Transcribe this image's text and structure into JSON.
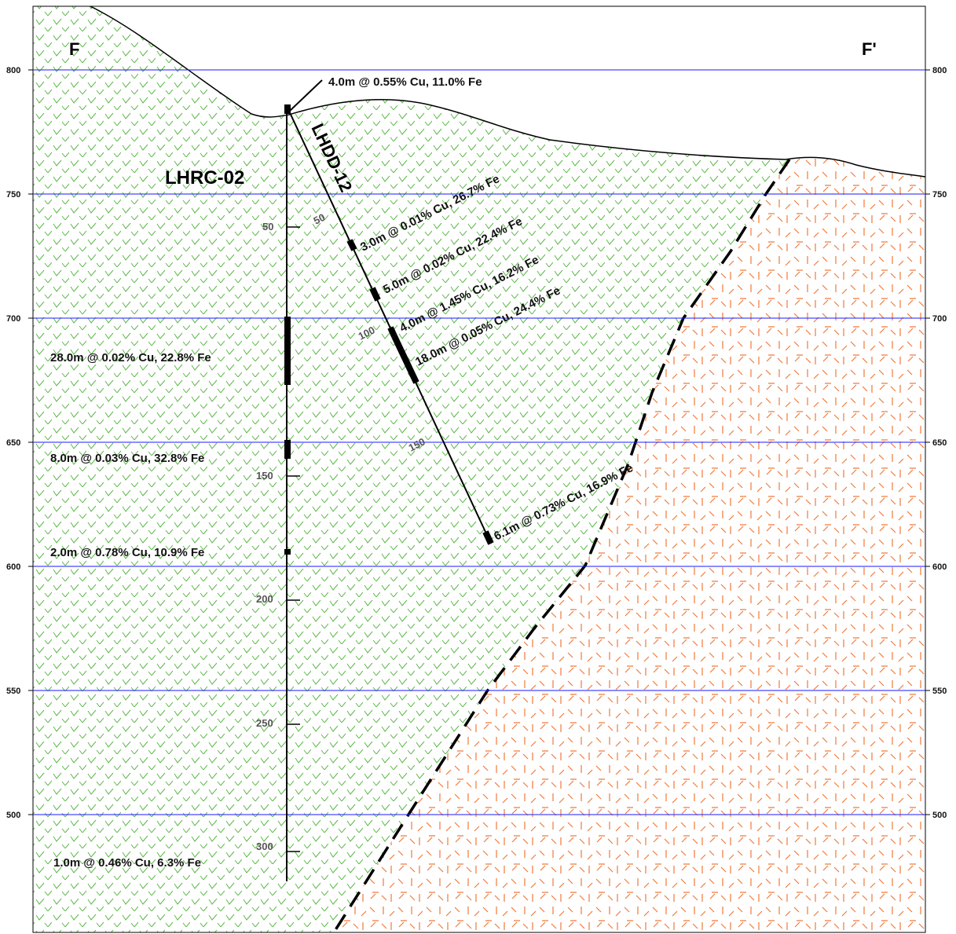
{
  "section": {
    "left_label": "F",
    "right_label": "F'"
  },
  "elevations": [
    800,
    750,
    700,
    650,
    600,
    550,
    500
  ],
  "drillholes": [
    {
      "name": "LHRC-02",
      "depth_labels": [
        50,
        150,
        200,
        250,
        300
      ],
      "intercepts": [
        "4.0m @ 0.55% Cu, 11.0% Fe",
        "28.0m @ 0.02% Cu, 22.8% Fe",
        "8.0m @ 0.03% Cu, 32.8% Fe",
        "2.0m @ 0.78% Cu, 10.9% Fe",
        "1.0m @ 0.46% Cu, 6.3% Fe"
      ]
    },
    {
      "name": "LHDD-12",
      "depth_labels": [
        50,
        100,
        150
      ],
      "intercepts": [
        "3.0m @ 0.01% Cu, 26.7% Fe",
        "5.0m @ 0.02% Cu, 22.4% Fe",
        "4.0m @ 1.45% Cu, 16.2% Fe",
        "18.0m @ 0.05% Cu, 24.4% Fe",
        "6.1m @ 0.73% Cu, 16.9% Fe"
      ]
    }
  ]
}
